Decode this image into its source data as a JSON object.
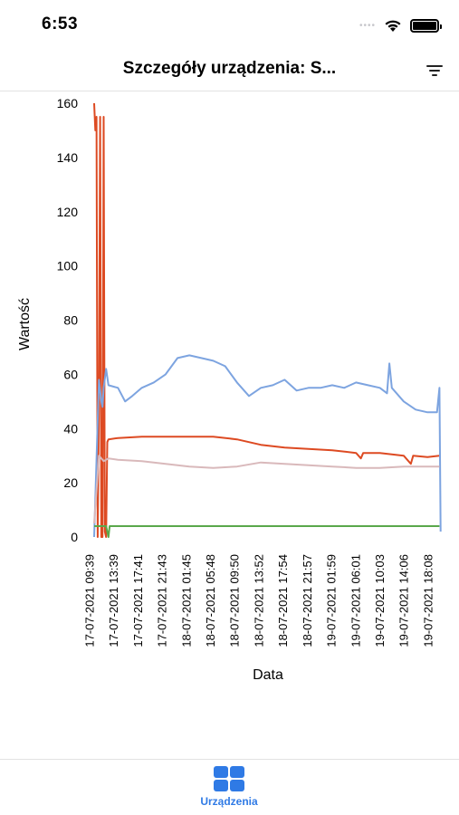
{
  "status_bar": {
    "time": "6:53",
    "signal": "••••"
  },
  "nav": {
    "title": "Szczegóły urządzenia: S...",
    "filter_icon": "filter-icon"
  },
  "tab_bar": {
    "items": [
      {
        "label": "Urządzenia",
        "icon": "grid-icon",
        "selected": true
      }
    ]
  },
  "colors": {
    "accent": "#2f7ae5",
    "series_red": "#dd4a22",
    "series_blue": "#7da4e0",
    "series_pink": "#d9b9bb",
    "series_green": "#5aa84b"
  },
  "chart_data": {
    "type": "line",
    "xlabel": "Data",
    "ylabel": "Wartość",
    "ylim": [
      0,
      160
    ],
    "yticks": [
      0,
      20,
      40,
      60,
      80,
      100,
      120,
      140,
      160
    ],
    "x_tick_labels": [
      "17-07-2021 09:39",
      "17-07-2021 13:39",
      "17-07-2021 17:41",
      "17-07-2021 21:43",
      "18-07-2021 01:45",
      "18-07-2021 05:48",
      "18-07-2021 09:50",
      "18-07-2021 13:52",
      "18-07-2021 17:54",
      "18-07-2021 21:57",
      "19-07-2021 01:59",
      "19-07-2021 06:01",
      "19-07-2021 10:03",
      "19-07-2021 14:06",
      "19-07-2021 18:08"
    ],
    "x_range": [
      0,
      14.6
    ],
    "grid": false,
    "series": [
      {
        "color": "#dd4a22",
        "x": [
          0,
          0.05,
          0.1,
          0.15,
          0.2,
          0.25,
          0.3,
          0.35,
          0.4,
          0.45,
          0.5,
          0.55,
          0.6,
          1,
          2,
          3,
          4,
          5,
          6,
          7,
          8,
          9,
          10,
          11,
          11.2,
          11.3,
          12,
          13,
          13.3,
          13.4,
          14,
          14.5
        ],
        "y": [
          160,
          150,
          155,
          0,
          50,
          155,
          0,
          0,
          155,
          2,
          0,
          35,
          36,
          36.5,
          37,
          37,
          37,
          37,
          36,
          34,
          33,
          32.5,
          32,
          31,
          29,
          31,
          31,
          30,
          27,
          30,
          29.5,
          30
        ]
      },
      {
        "color": "#7da4e0",
        "x": [
          0,
          0.2,
          0.3,
          0.35,
          0.4,
          0.5,
          0.6,
          1,
          1.3,
          1.6,
          2,
          2.5,
          3,
          3.5,
          4,
          4.5,
          5,
          5.5,
          6,
          6.5,
          7,
          7.5,
          8,
          8.5,
          9,
          9.5,
          10,
          10.5,
          11,
          11.5,
          12,
          12.3,
          12.4,
          12.5,
          13,
          13.5,
          14,
          14.4,
          14.5,
          14.55
        ],
        "y": [
          0,
          58,
          50,
          48,
          55,
          62,
          56,
          55,
          50,
          52,
          55,
          57,
          60,
          66,
          67,
          66,
          65,
          63,
          57,
          52,
          55,
          56,
          58,
          54,
          55,
          55,
          56,
          55,
          57,
          56,
          55,
          53,
          64,
          55,
          50,
          47,
          46,
          46,
          55,
          2
        ]
      },
      {
        "color": "#d9b9bb",
        "x": [
          0,
          0.2,
          0.4,
          0.6,
          1,
          2,
          3,
          4,
          5,
          6,
          7,
          8,
          9,
          10,
          11,
          12,
          13,
          14,
          14.5
        ],
        "y": [
          5,
          30,
          28,
          29,
          28.5,
          28,
          27,
          26,
          25.5,
          26,
          27.5,
          27,
          26.5,
          26,
          25.5,
          25.5,
          26,
          26,
          26
        ]
      },
      {
        "color": "#5aa84b",
        "x": [
          0,
          0.3,
          0.5,
          0.6,
          0.65,
          1,
          2,
          4,
          6,
          8,
          10,
          12,
          14,
          14.5
        ],
        "y": [
          4,
          4,
          4,
          0,
          4,
          4,
          4,
          4,
          4,
          4,
          4,
          4,
          4,
          4
        ]
      }
    ]
  }
}
